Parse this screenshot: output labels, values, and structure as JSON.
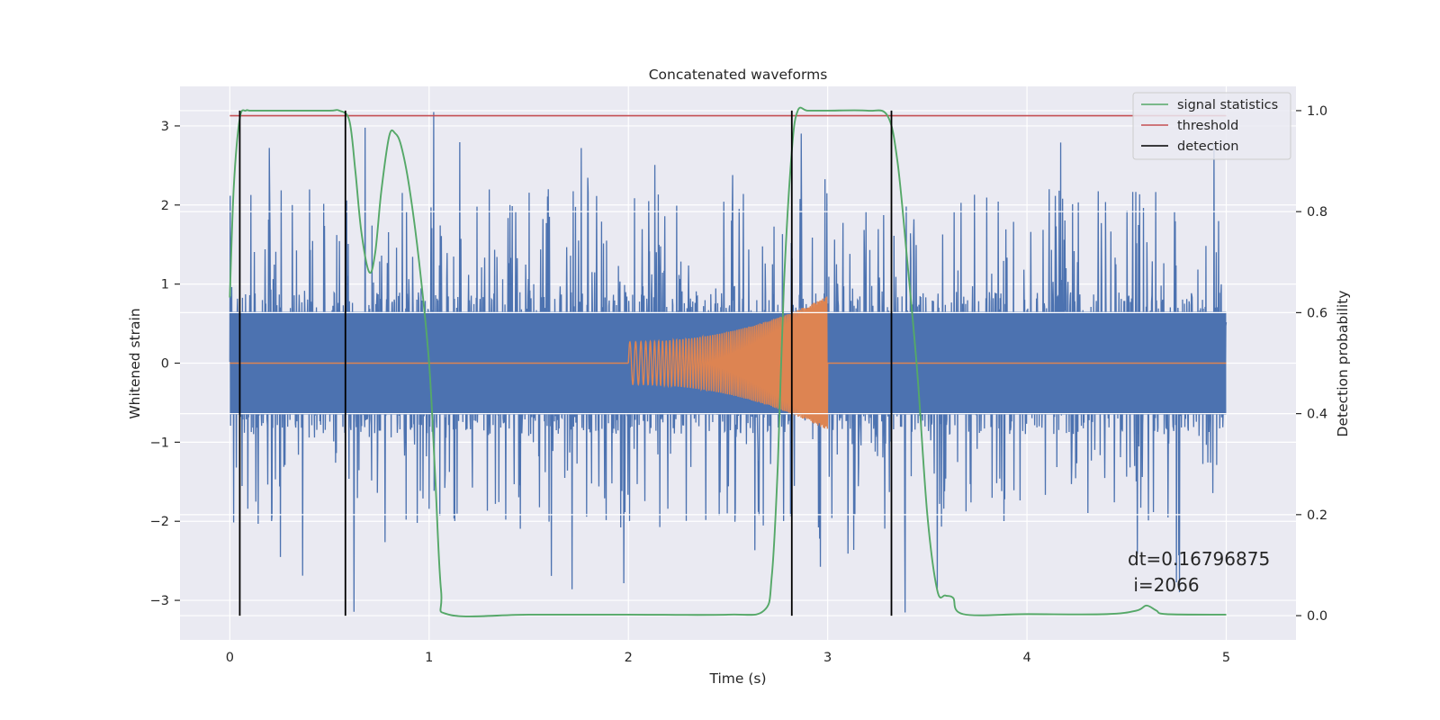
{
  "chart_data": {
    "type": "line",
    "title": "Concatenated waveforms",
    "xlabel": "Time (s)",
    "ylabel": "Whitened strain",
    "y2label": "Detection probability",
    "xlim": [
      -0.25,
      5.35
    ],
    "ylim": [
      -3.5,
      3.5
    ],
    "y2lim": [
      -0.048,
      1.048
    ],
    "xticks": [
      {
        "value": 0,
        "label": "0"
      },
      {
        "value": 1,
        "label": "1"
      },
      {
        "value": 2,
        "label": "2"
      },
      {
        "value": 3,
        "label": "3"
      },
      {
        "value": 4,
        "label": "4"
      },
      {
        "value": 5,
        "label": "5"
      }
    ],
    "yticks": [
      {
        "value": 3,
        "label": "3"
      },
      {
        "value": 2,
        "label": "2"
      },
      {
        "value": 1,
        "label": "1"
      },
      {
        "value": 0,
        "label": "0"
      },
      {
        "value": -1,
        "label": "−1"
      },
      {
        "value": -2,
        "label": "−2"
      },
      {
        "value": -3,
        "label": "−3"
      }
    ],
    "y2ticks": [
      {
        "value": 1.0,
        "label": "1.0"
      },
      {
        "value": 0.8,
        "label": "0.8"
      },
      {
        "value": 0.6,
        "label": "0.6"
      },
      {
        "value": 0.4,
        "label": "0.4"
      },
      {
        "value": 0.2,
        "label": "0.2"
      },
      {
        "value": 0.0,
        "label": "0.0"
      }
    ],
    "grid": true,
    "legend_position": "top-right",
    "colors": {
      "background": "#eaeaf2",
      "grid": "#ffffff",
      "strain": "#4c72b0",
      "injection": "#dd8452",
      "signal_statistics": "#55a868",
      "threshold": "#c44e52",
      "detection": "#000000"
    },
    "series": [
      {
        "name": "",
        "role": "strain",
        "axis": "left",
        "x_start": 0.0,
        "x_end": 5.0,
        "core_band": [
          -0.65,
          0.65
        ],
        "typical_peak": [
          -2.1,
          2.2
        ],
        "max_peak": [
          -3.2,
          3.2
        ]
      },
      {
        "name": "",
        "role": "injection",
        "axis": "left",
        "x_start": 0.0,
        "x_end": 5.0,
        "chirp_start": 2.0,
        "chirp_end": 3.0,
        "amplitude_start": 0.27,
        "amplitude_end": 0.85
      },
      {
        "name": "signal statistics",
        "role": "signal_statistics",
        "axis": "right",
        "x": [
          0.0,
          0.02,
          0.05,
          0.08,
          0.1,
          0.15,
          0.3,
          0.5,
          0.55,
          0.6,
          0.63,
          0.66,
          0.7,
          0.73,
          0.76,
          0.8,
          0.83,
          0.86,
          0.9,
          0.95,
          1.0,
          1.03,
          1.06,
          1.1,
          1.5,
          2.0,
          2.5,
          2.68,
          2.72,
          2.75,
          2.78,
          2.82,
          2.85,
          2.9,
          3.0,
          3.2,
          3.3,
          3.35,
          3.4,
          3.45,
          3.5,
          3.55,
          3.59,
          3.63,
          3.68,
          4.0,
          4.4,
          4.55,
          4.6,
          4.65,
          4.7,
          5.0
        ],
        "y": [
          0.63,
          0.85,
          0.985,
          1.0,
          1.0,
          1.0,
          1.0,
          1.0,
          1.0,
          0.98,
          0.88,
          0.76,
          0.68,
          0.72,
          0.84,
          0.95,
          0.955,
          0.93,
          0.85,
          0.7,
          0.5,
          0.28,
          0.05,
          0.002,
          0.002,
          0.002,
          0.002,
          0.01,
          0.08,
          0.3,
          0.65,
          0.92,
          1.0,
          1.0,
          1.0,
          1.0,
          0.99,
          0.9,
          0.7,
          0.48,
          0.2,
          0.05,
          0.04,
          0.035,
          0.003,
          0.003,
          0.003,
          0.01,
          0.02,
          0.01,
          0.003,
          0.002
        ]
      },
      {
        "name": "threshold",
        "role": "threshold",
        "axis": "right",
        "x": [
          0.0,
          5.0
        ],
        "y": [
          0.99,
          0.99
        ]
      },
      {
        "name": "detection",
        "role": "detection",
        "axis": "right",
        "x": [
          0.05,
          0.58,
          2.82,
          3.32
        ],
        "y_range": [
          0.0,
          1.0
        ]
      }
    ],
    "annotation": {
      "line1": "dt=0.16796875",
      "line2": " i=2066"
    }
  }
}
